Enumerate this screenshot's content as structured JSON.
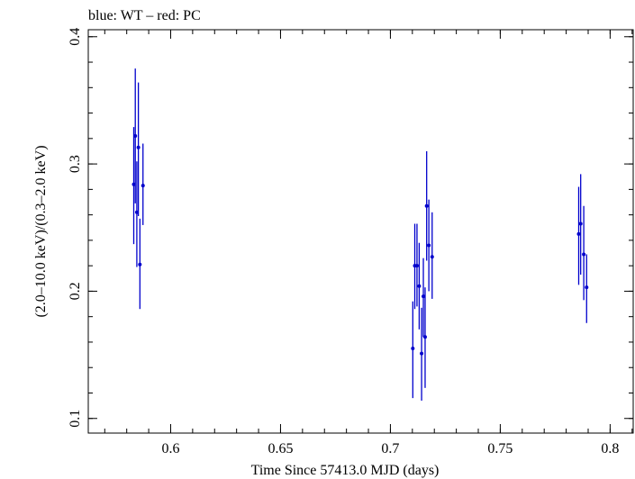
{
  "chart_data": {
    "type": "scatter",
    "title": "blue: WT – red: PC",
    "xlabel": "Time Since 57413.0 MJD (days)",
    "ylabel": "(2.0–10.0 keV)/(0.3–2.0 keV)",
    "xlim": [
      0.5625,
      0.8105
    ],
    "ylim": [
      0.0885,
      0.4055
    ],
    "x_major_ticks": [
      0.6,
      0.65,
      0.7,
      0.75,
      0.8
    ],
    "x_tick_labels": [
      "0.6",
      "0.65",
      "0.7",
      "0.75",
      "0.8"
    ],
    "x_minor_step": 0.01,
    "y_major_ticks": [
      0.1,
      0.2,
      0.3,
      0.4
    ],
    "y_tick_labels": [
      "0.1",
      "0.2",
      "0.3",
      "0.4"
    ],
    "y_minor_step": 0.02,
    "grid": false,
    "series": [
      {
        "name": "WT",
        "color": "#0000cc",
        "points": [
          {
            "x": 0.5832,
            "y": 0.284,
            "yerr_low": 0.237,
            "yerr_high": 0.329
          },
          {
            "x": 0.5839,
            "y": 0.322,
            "yerr_low": 0.269,
            "yerr_high": 0.375
          },
          {
            "x": 0.5846,
            "y": 0.262,
            "yerr_low": 0.219,
            "yerr_high": 0.302
          },
          {
            "x": 0.5853,
            "y": 0.313,
            "yerr_low": 0.259,
            "yerr_high": 0.364
          },
          {
            "x": 0.586,
            "y": 0.221,
            "yerr_low": 0.186,
            "yerr_high": 0.257
          },
          {
            "x": 0.5874,
            "y": 0.283,
            "yerr_low": 0.252,
            "yerr_high": 0.316
          },
          {
            "x": 0.7102,
            "y": 0.155,
            "yerr_low": 0.116,
            "yerr_high": 0.192
          },
          {
            "x": 0.7111,
            "y": 0.22,
            "yerr_low": 0.186,
            "yerr_high": 0.253
          },
          {
            "x": 0.7121,
            "y": 0.22,
            "yerr_low": 0.188,
            "yerr_high": 0.253
          },
          {
            "x": 0.7131,
            "y": 0.204,
            "yerr_low": 0.17,
            "yerr_high": 0.238
          },
          {
            "x": 0.7142,
            "y": 0.151,
            "yerr_low": 0.114,
            "yerr_high": 0.187
          },
          {
            "x": 0.715,
            "y": 0.196,
            "yerr_low": 0.164,
            "yerr_high": 0.226
          },
          {
            "x": 0.7158,
            "y": 0.164,
            "yerr_low": 0.124,
            "yerr_high": 0.203
          },
          {
            "x": 0.7165,
            "y": 0.267,
            "yerr_low": 0.224,
            "yerr_high": 0.31
          },
          {
            "x": 0.7175,
            "y": 0.236,
            "yerr_low": 0.2,
            "yerr_high": 0.272
          },
          {
            "x": 0.719,
            "y": 0.227,
            "yerr_low": 0.194,
            "yerr_high": 0.262
          },
          {
            "x": 0.7857,
            "y": 0.245,
            "yerr_low": 0.205,
            "yerr_high": 0.282
          },
          {
            "x": 0.7866,
            "y": 0.253,
            "yerr_low": 0.213,
            "yerr_high": 0.292
          },
          {
            "x": 0.788,
            "y": 0.229,
            "yerr_low": 0.193,
            "yerr_high": 0.267
          },
          {
            "x": 0.7893,
            "y": 0.203,
            "yerr_low": 0.175,
            "yerr_high": 0.229
          }
        ]
      }
    ]
  }
}
